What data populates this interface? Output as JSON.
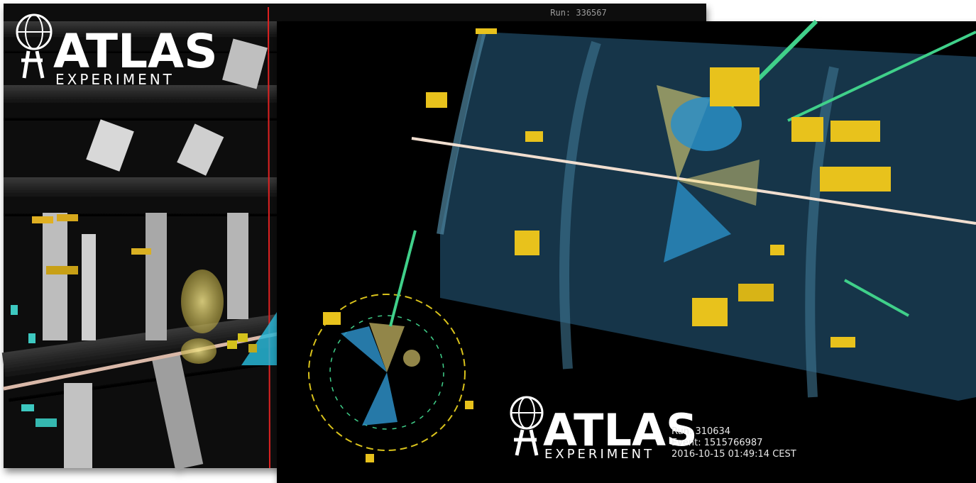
{
  "back_panel": {
    "logo": {
      "title": "ATLAS",
      "subtitle": "EXPERIMENT"
    },
    "run": "Run: 336567"
  },
  "front_panel": {
    "logo": {
      "title": "ATLAS",
      "subtitle": "EXPERIMENT"
    },
    "run": "Run: 310634",
    "event": "Event: 1515766987",
    "timestamp": "2016-10-15 01:49:14 CEST"
  }
}
